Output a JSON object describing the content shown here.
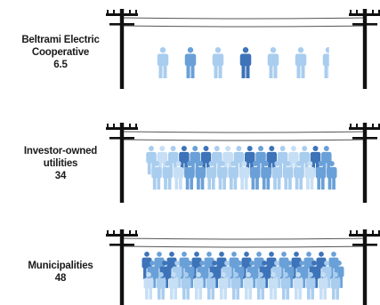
{
  "chart_data": {
    "type": "pictograph",
    "title": "",
    "rows": [
      {
        "label_lines": [
          "Beltrami Electric",
          "Cooperative"
        ],
        "value": 6.5,
        "value_text": "6.5"
      },
      {
        "label_lines": [
          "Investor-owned",
          "utilities"
        ],
        "value": 34,
        "value_text": "34"
      },
      {
        "label_lines": [
          "Municipalities"
        ],
        "value": 48,
        "value_text": "48"
      }
    ],
    "colors": {
      "dark": "#3d73b8",
      "mid": "#6aa0d8",
      "light": "#a9cdee",
      "pale": "#c6dff5",
      "pole": "#111111",
      "wire": "#555555"
    }
  }
}
